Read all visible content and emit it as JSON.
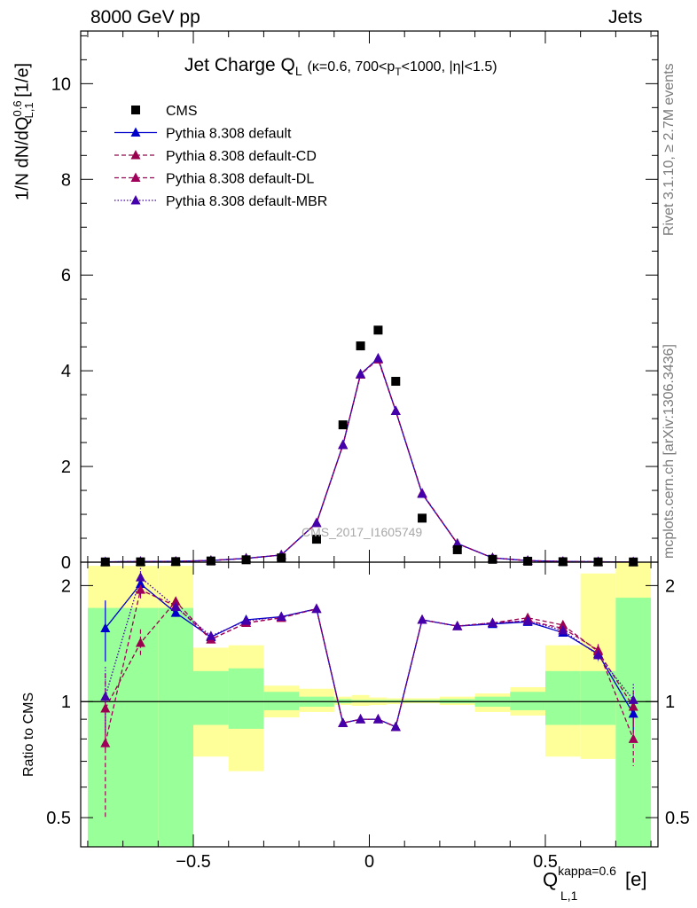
{
  "header": {
    "left": "8000 GeV pp",
    "right": "Jets"
  },
  "side_labels": {
    "top": "Rivet 3.1.10, ≥ 2.7M events",
    "bottom": "mcplots.cern.ch [arXiv:1306.3436]"
  },
  "watermark": "CMS_2017_I1605749",
  "titles": {
    "main": "Jet Charge Q",
    "main_sub": "L",
    "main_cond": "(κ=0.6, 700<p",
    "main_cond_sub": "T",
    "main_cond_tail": "<1000, |η|<1.5)"
  },
  "axes": {
    "ylabel_top": "1/N dN/dQ",
    "ylabel_top_sup": "0.6",
    "ylabel_top_sub": "L,1",
    "ylabel_top_unit": "[1/e]",
    "ylabel_bottom": "Ratio to CMS",
    "xlabel": "Q",
    "xlabel_sup": "kappa=0.6",
    "xlabel_sub": "L,1",
    "xlabel_unit": "[e]"
  },
  "colors": {
    "data": "#000000",
    "default": "#0000cc",
    "cd": "#99004d",
    "dl": "#a0005a",
    "mbr": "#4400aa",
    "band_inner": "#99ff99",
    "band_outer": "#ffff99"
  },
  "chart_data": [
    {
      "type": "scatter",
      "panel": "main",
      "title": "Jet Charge Q_L (κ=0.6, 700<p_T<1000, |η|<1.5)",
      "xlim": [
        -0.82,
        0.82
      ],
      "ylim": [
        0,
        11.1
      ],
      "yticks": [
        "0",
        "2",
        "4",
        "6",
        "8",
        "10"
      ],
      "x": [
        -0.75,
        -0.65,
        -0.55,
        -0.45,
        -0.35,
        -0.25,
        -0.15,
        -0.075,
        -0.025,
        0.025,
        0.075,
        0.15,
        0.25,
        0.35,
        0.45,
        0.55,
        0.65,
        0.75
      ],
      "legend_placement": "top-left",
      "series": [
        {
          "name": "CMS",
          "key": "data",
          "style": "square",
          "values": [
            0.005,
            0.007,
            0.012,
            0.025,
            0.05,
            0.09,
            0.48,
            2.87,
            4.52,
            4.85,
            3.78,
            0.92,
            0.26,
            0.06,
            0.02,
            0.01,
            0.006,
            0.005
          ]
        },
        {
          "name": "Pythia 8.308 default",
          "key": "default",
          "style": "solid",
          "values": [
            0.007,
            0.013,
            0.017,
            0.035,
            0.08,
            0.15,
            0.82,
            2.45,
            3.93,
            4.26,
            3.16,
            1.43,
            0.39,
            0.09,
            0.032,
            0.015,
            0.008,
            0.005
          ]
        },
        {
          "name": "Pythia 8.308 default-CD",
          "key": "cd",
          "style": "dashed",
          "values": [
            0.005,
            0.012,
            0.017,
            0.035,
            0.08,
            0.15,
            0.82,
            2.45,
            3.92,
            4.24,
            3.16,
            1.44,
            0.39,
            0.09,
            0.032,
            0.015,
            0.008,
            0.005
          ]
        },
        {
          "name": "Pythia 8.308 default-DL",
          "key": "dl",
          "style": "dashed",
          "values": [
            0.004,
            0.012,
            0.017,
            0.035,
            0.08,
            0.15,
            0.82,
            2.45,
            3.92,
            4.24,
            3.16,
            1.44,
            0.39,
            0.09,
            0.032,
            0.015,
            0.008,
            0.004
          ]
        },
        {
          "name": "Pythia 8.308 default-MBR",
          "key": "mbr",
          "style": "dotted",
          "values": [
            0.005,
            0.014,
            0.017,
            0.035,
            0.08,
            0.15,
            0.82,
            2.45,
            3.93,
            4.26,
            3.16,
            1.43,
            0.39,
            0.09,
            0.032,
            0.015,
            0.008,
            0.005
          ]
        }
      ]
    },
    {
      "type": "line",
      "panel": "ratio",
      "ylabel": "Ratio to CMS",
      "yscale": "log",
      "ylim": [
        0.42,
        2.3
      ],
      "yticks": [
        "0.5",
        "1",
        "2"
      ],
      "xlim": [
        -0.82,
        0.82
      ],
      "xticks": [
        "−0.5",
        "0",
        "0.5"
      ],
      "x": [
        -0.75,
        -0.65,
        -0.55,
        -0.45,
        -0.35,
        -0.25,
        -0.15,
        -0.075,
        -0.025,
        0.025,
        0.075,
        0.15,
        0.25,
        0.35,
        0.45,
        0.55,
        0.65,
        0.75
      ],
      "bands": {
        "edges": [
          -0.8,
          -0.6,
          -0.5,
          -0.4,
          -0.3,
          -0.2,
          -0.1,
          -0.05,
          0.0,
          0.05,
          0.1,
          0.2,
          0.3,
          0.4,
          0.5,
          0.6,
          0.7,
          0.8
        ],
        "inner_low": [
          0.39,
          0.39,
          0.87,
          0.85,
          0.95,
          0.97,
          0.99,
          0.995,
          0.995,
          0.995,
          0.995,
          0.99,
          0.97,
          0.95,
          0.87,
          0.87,
          0.42
        ],
        "inner_high": [
          1.75,
          1.75,
          1.2,
          1.22,
          1.06,
          1.03,
          1.015,
          1.01,
          1.01,
          1.01,
          1.01,
          1.015,
          1.03,
          1.06,
          1.2,
          1.2,
          1.86
        ],
        "outer_low": [
          0.38,
          0.38,
          0.72,
          0.66,
          0.91,
          0.94,
          0.98,
          0.975,
          0.98,
          0.985,
          0.99,
          0.98,
          0.94,
          0.92,
          0.72,
          0.71,
          0.41
        ],
        "outer_high": [
          2.25,
          2.25,
          1.38,
          1.4,
          1.1,
          1.08,
          1.03,
          1.04,
          1.025,
          1.02,
          1.02,
          1.03,
          1.05,
          1.09,
          1.4,
          2.15,
          2.3
        ]
      },
      "series": [
        {
          "name": "Pythia 8.308 default",
          "key": "default",
          "style": "solid",
          "values": [
            1.55,
            2.02,
            1.7,
            1.47,
            1.63,
            1.66,
            1.74,
            0.88,
            0.9,
            0.9,
            0.86,
            1.63,
            1.57,
            1.59,
            1.61,
            1.51,
            1.33,
            0.93
          ],
          "errors": [
            0.28,
            0.12,
            0.04,
            0.03,
            0.01,
            0.01,
            0.01,
            0.005,
            0.005,
            0.005,
            0.005,
            0.01,
            0.01,
            0.01,
            0.02,
            0.03,
            0.05,
            0.1
          ]
        },
        {
          "name": "Pythia 8.308 default-CD",
          "key": "cd",
          "style": "dashed",
          "values": [
            0.96,
            1.42,
            1.82,
            1.45,
            1.6,
            1.65,
            1.74,
            0.88,
            0.9,
            0.9,
            0.86,
            1.63,
            1.57,
            1.6,
            1.65,
            1.58,
            1.35,
            0.97
          ],
          "errors": [
            0.22,
            0.12,
            0.04,
            0.03,
            0.01,
            0.01,
            0.01,
            0.005,
            0.005,
            0.005,
            0.005,
            0.01,
            0.01,
            0.01,
            0.02,
            0.03,
            0.05,
            0.1
          ]
        },
        {
          "name": "Pythia 8.308 default-DL",
          "key": "dl",
          "style": "dashed",
          "values": [
            0.78,
            1.95,
            1.77,
            1.45,
            1.6,
            1.65,
            1.74,
            0.88,
            0.9,
            0.9,
            0.86,
            1.63,
            1.57,
            1.6,
            1.62,
            1.55,
            1.36,
            0.8
          ],
          "errors": [
            0.28,
            0.12,
            0.04,
            0.03,
            0.01,
            0.01,
            0.01,
            0.005,
            0.005,
            0.005,
            0.005,
            0.01,
            0.01,
            0.01,
            0.02,
            0.03,
            0.05,
            0.12
          ]
        },
        {
          "name": "Pythia 8.308 default-MBR",
          "key": "mbr",
          "style": "dotted",
          "values": [
            1.03,
            2.1,
            1.76,
            1.48,
            1.62,
            1.66,
            1.74,
            0.88,
            0.9,
            0.9,
            0.86,
            1.63,
            1.57,
            1.6,
            1.62,
            1.53,
            1.32,
            1.01
          ],
          "errors": [
            0.2,
            0.12,
            0.04,
            0.03,
            0.01,
            0.01,
            0.01,
            0.005,
            0.005,
            0.005,
            0.005,
            0.01,
            0.01,
            0.01,
            0.02,
            0.03,
            0.05,
            0.1
          ]
        }
      ]
    }
  ]
}
